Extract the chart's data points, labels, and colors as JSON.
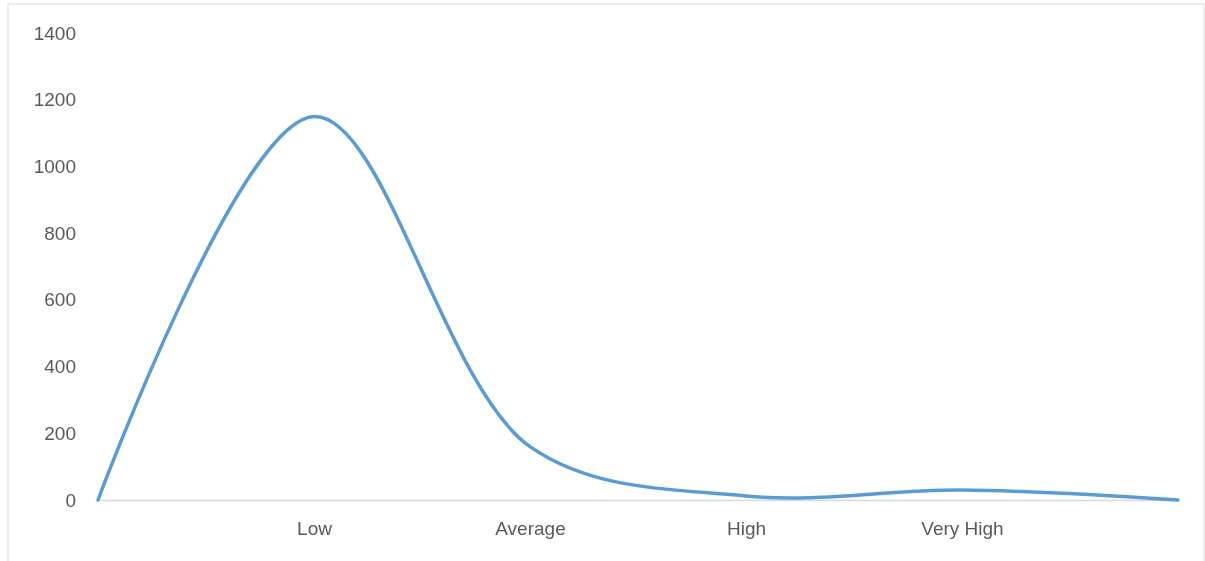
{
  "chart_data": {
    "type": "line",
    "categories": [
      null,
      "Low",
      "Average",
      "High",
      "Very High",
      null
    ],
    "series": [
      {
        "color": "#5b9bd5",
        "values": [
          0,
          1150,
          160,
          12,
          30,
          0
        ]
      }
    ],
    "ylim": [
      0,
      1400
    ],
    "yticks": [
      0,
      200,
      400,
      600,
      800,
      1000,
      1200,
      1400
    ],
    "grid": false
  }
}
